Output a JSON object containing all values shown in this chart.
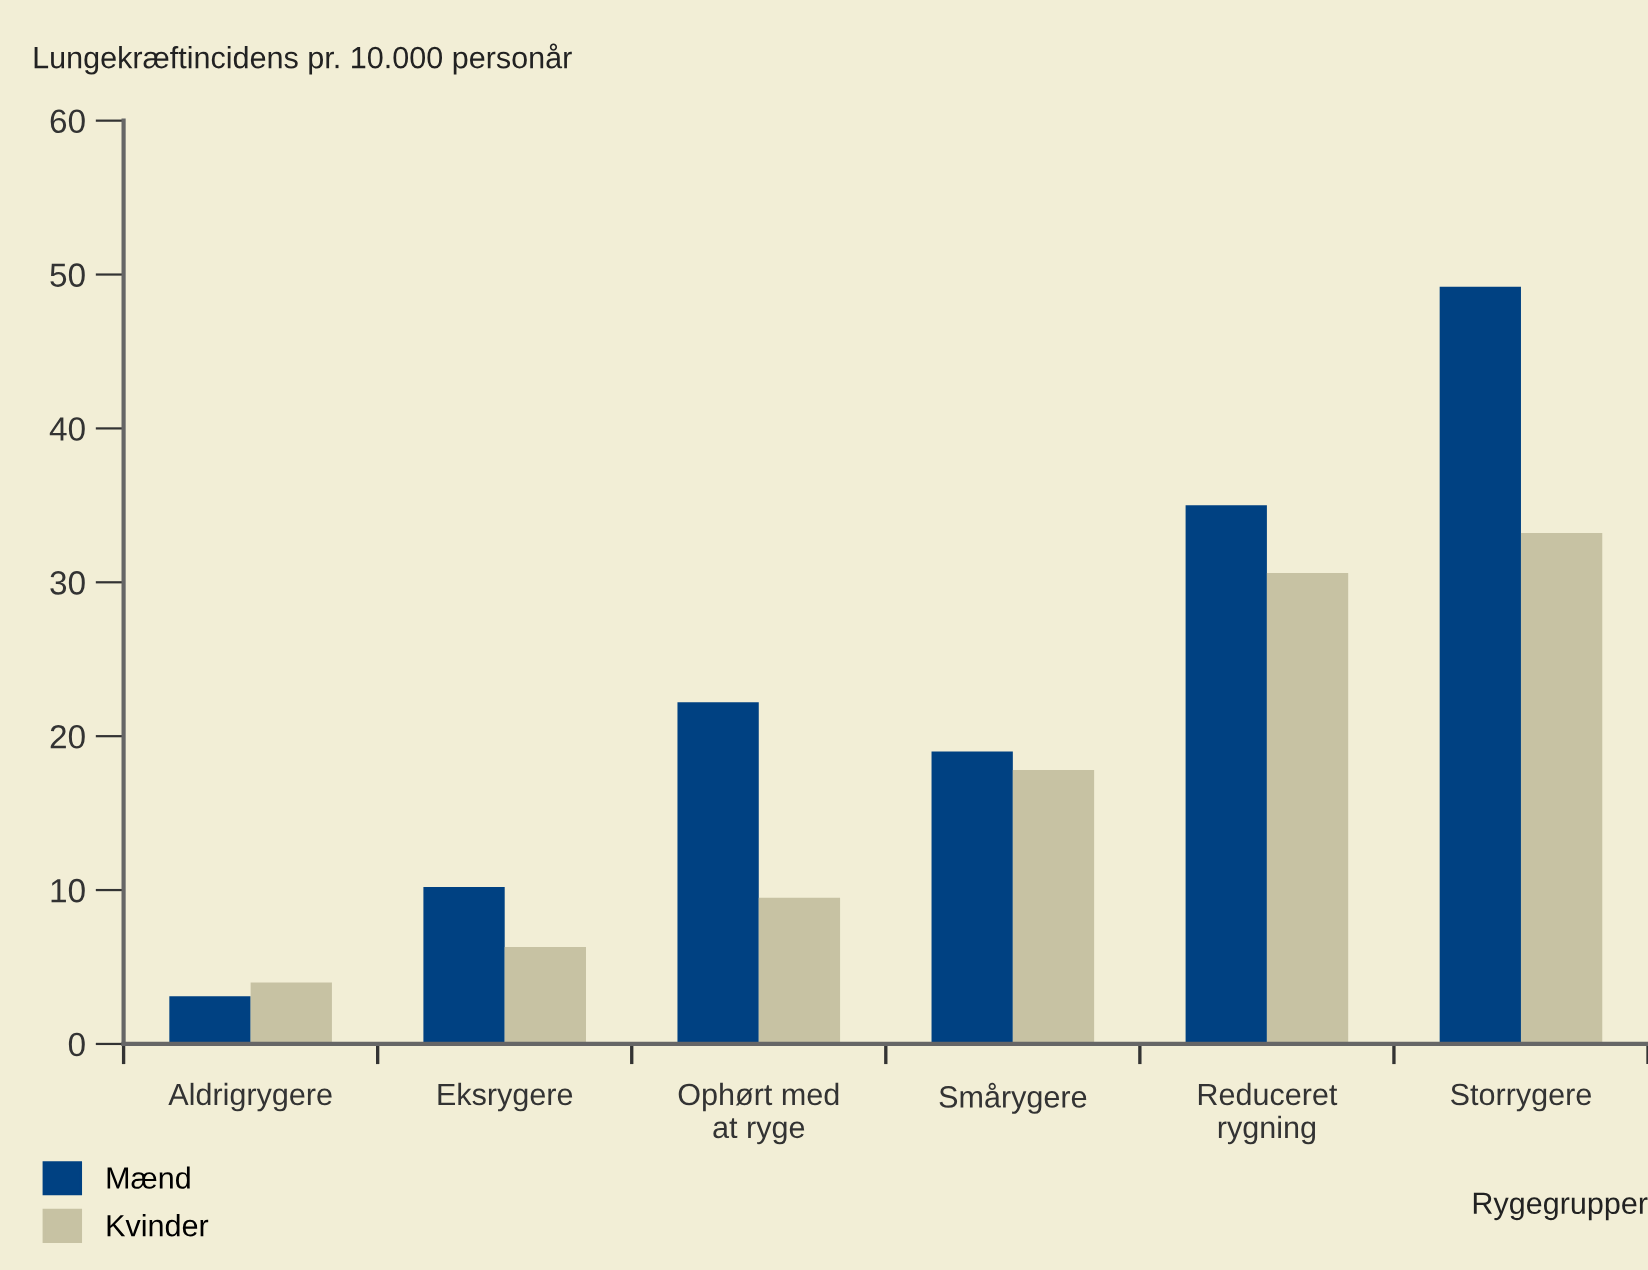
{
  "chart_data": {
    "type": "bar",
    "ylabel": "Lungekræftincidens pr. 10.000 personår",
    "xlabel": "Rygegrupper",
    "categories": [
      "Aldrigrygere",
      "Eksrygere",
      "Ophørt med\nat ryge",
      "Smårygere",
      "Reduceret\nrygning",
      "Storrygere"
    ],
    "series": [
      {
        "name": "Mænd",
        "color": "#004182",
        "values": [
          3.1,
          10.2,
          22.2,
          19.0,
          35.0,
          49.2
        ]
      },
      {
        "name": "Kvinder",
        "color": "#c7c2a3",
        "values": [
          4.0,
          6.3,
          9.5,
          17.8,
          30.6,
          33.2
        ]
      }
    ],
    "ylim": [
      0,
      60
    ],
    "yticks": [
      0,
      10,
      20,
      30,
      40,
      50,
      60
    ],
    "grid": false,
    "legend": "bottom left"
  }
}
